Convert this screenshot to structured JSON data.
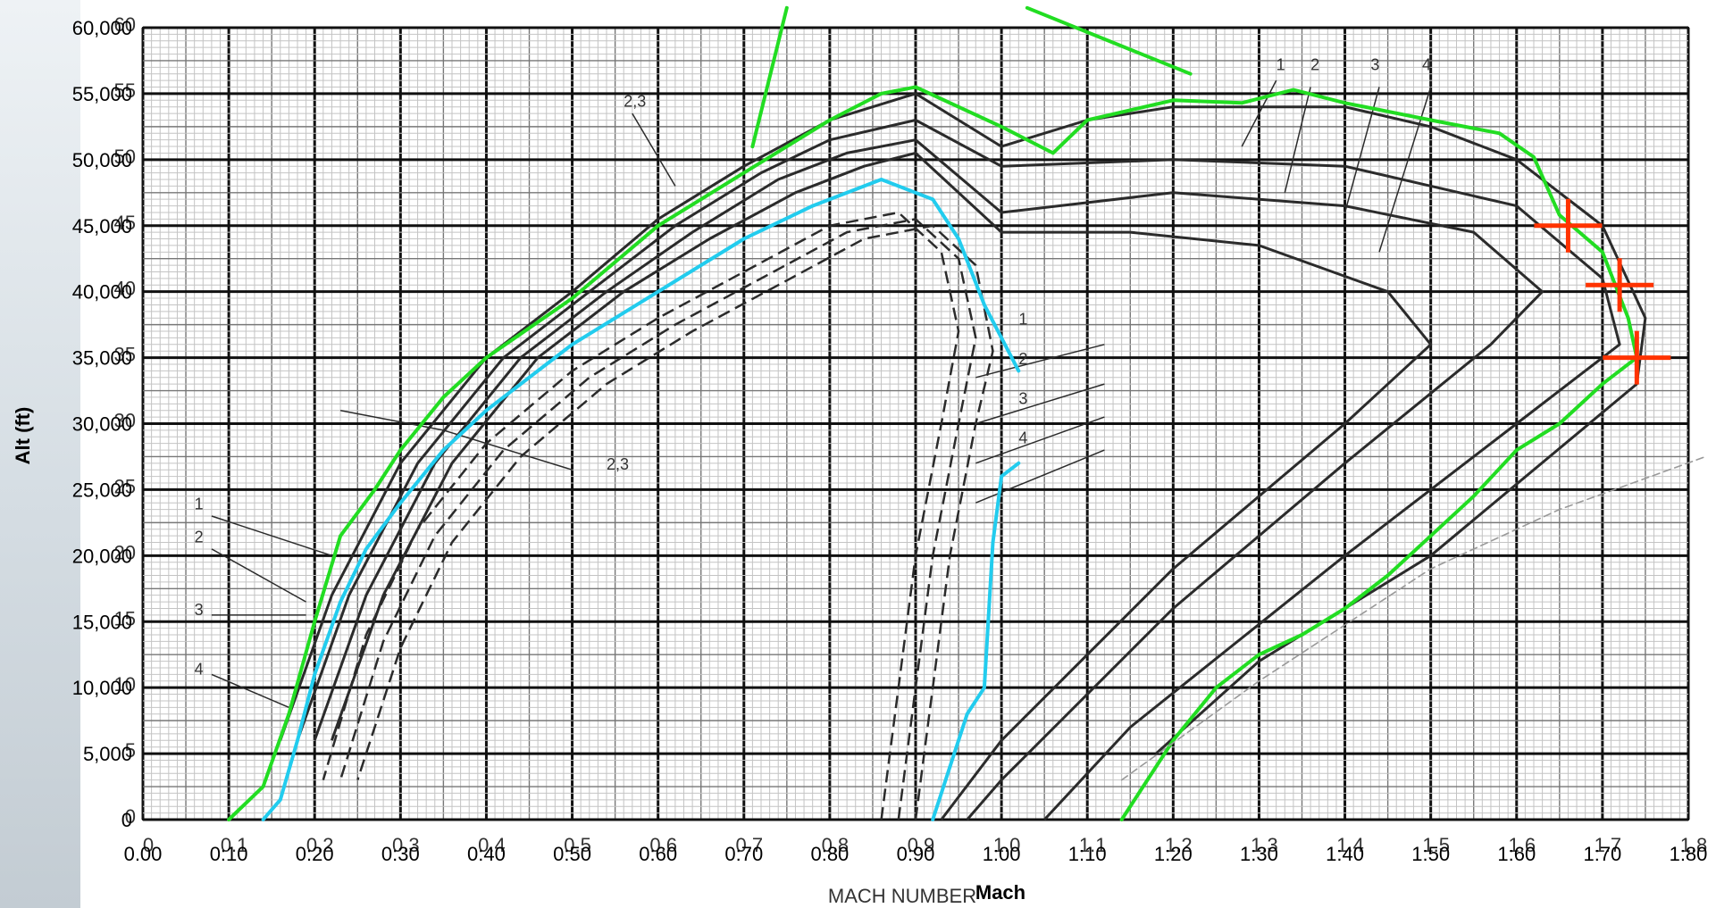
{
  "chart_data": {
    "type": "line",
    "xlabel": "Mach",
    "ylabel": "Alt (ft)",
    "xlim": [
      0.0,
      1.8
    ],
    "ylim": [
      0,
      60000
    ],
    "grid": true,
    "x_ticks": [
      "0.00",
      "0:10",
      "0:20",
      "0:30",
      "0:40",
      "0:50",
      "0:60",
      "0:70",
      "0:80",
      "0:90",
      "1:00",
      "1:10",
      "1:20",
      "1:30",
      "1:40",
      "1:50",
      "1:60",
      "1:70",
      "1:80"
    ],
    "y_ticks": [
      "0",
      "5,000",
      "10,000",
      "15,000",
      "20,000",
      "25,000",
      "30,000",
      "35,000",
      "40,000",
      "45,000",
      "50,000",
      "55,000",
      "60,000"
    ],
    "background_chart": {
      "xlabel": "MACH NUMBER",
      "x_ticks": [
        "0",
        "0.1",
        "0.2",
        "0.3",
        "0.4",
        "0.5",
        "0.6",
        "0.7",
        "0.8",
        "0.9",
        "1.0",
        "1.1",
        "1.2",
        "1.3",
        "1.4",
        "1.5",
        "1.6",
        "1.7",
        "1.8"
      ],
      "y_ticks": [
        "0",
        "5",
        "10",
        "15",
        "20",
        "25",
        "30",
        "35",
        "40",
        "45",
        "50",
        "55",
        "60"
      ],
      "labels": [
        "1",
        "2",
        "3",
        "4",
        "2,3",
        "1",
        "2",
        "3",
        "4",
        "2,3",
        "1",
        "2",
        "3",
        "4"
      ]
    },
    "series": [
      {
        "color": "#22dd22",
        "points": [
          [
            0.1,
            0
          ],
          [
            0.14,
            2500
          ],
          [
            0.17,
            8000
          ],
          [
            0.2,
            15000
          ],
          [
            0.23,
            21500
          ],
          [
            0.27,
            25000
          ],
          [
            0.3,
            28000
          ],
          [
            0.35,
            32000
          ],
          [
            0.4,
            35000
          ],
          [
            0.5,
            39500
          ],
          [
            0.6,
            45000
          ],
          [
            0.7,
            49000
          ],
          [
            0.8,
            53000
          ],
          [
            0.86,
            55000
          ],
          [
            0.9,
            55500
          ],
          [
            1.0,
            52500
          ],
          [
            1.06,
            50500
          ],
          [
            1.1,
            53000
          ],
          [
            1.2,
            54500
          ],
          [
            1.28,
            54300
          ],
          [
            1.34,
            55300
          ],
          [
            1.4,
            54300
          ],
          [
            1.5,
            53000
          ],
          [
            1.58,
            52000
          ],
          [
            1.62,
            50200
          ],
          [
            1.65,
            45800
          ],
          [
            1.7,
            43000
          ],
          [
            1.73,
            38000
          ],
          [
            1.74,
            35000
          ],
          [
            1.7,
            33000
          ],
          [
            1.65,
            30000
          ],
          [
            1.6,
            28000
          ],
          [
            1.55,
            24500
          ],
          [
            1.5,
            21500
          ],
          [
            1.45,
            18500
          ],
          [
            1.4,
            16000
          ],
          [
            1.35,
            14000
          ],
          [
            1.3,
            12500
          ],
          [
            1.25,
            10000
          ],
          [
            1.2,
            6000
          ],
          [
            1.16,
            2000
          ],
          [
            1.14,
            0
          ]
        ]
      },
      {
        "color": "#22dd22",
        "points": [
          [
            0.71,
            51000
          ],
          [
            0.75,
            61500
          ]
        ]
      },
      {
        "color": "#22dd22",
        "points": [
          [
            1.03,
            61500
          ],
          [
            1.22,
            56500
          ]
        ]
      },
      {
        "color": "#22ccee",
        "points": [
          [
            0.14,
            0
          ],
          [
            0.16,
            1500
          ],
          [
            0.18,
            6000
          ],
          [
            0.2,
            11000
          ],
          [
            0.23,
            16500
          ],
          [
            0.26,
            20500
          ],
          [
            0.3,
            24000
          ],
          [
            0.35,
            28000
          ],
          [
            0.4,
            31000
          ],
          [
            0.5,
            36000
          ],
          [
            0.6,
            40000
          ],
          [
            0.7,
            44000
          ],
          [
            0.78,
            46500
          ],
          [
            0.86,
            48500
          ],
          [
            0.92,
            47000
          ],
          [
            0.95,
            44000
          ],
          [
            0.98,
            39000
          ],
          [
            1.02,
            34000
          ]
        ]
      },
      {
        "color": "#22ccee",
        "points": [
          [
            1.02,
            27000
          ],
          [
            1.0,
            26000
          ],
          [
            0.99,
            21000
          ],
          [
            0.98,
            10000
          ],
          [
            0.96,
            8000
          ],
          [
            0.94,
            4000
          ],
          [
            0.92,
            0
          ]
        ]
      },
      {
        "color": "#999999",
        "dashed": true,
        "points": [
          [
            1.14,
            3000
          ],
          [
            1.3,
            10500
          ],
          [
            1.5,
            19000
          ],
          [
            1.65,
            23500
          ],
          [
            1.82,
            27500
          ]
        ]
      }
    ],
    "markers": [
      {
        "type": "plus",
        "color": "#ff3300",
        "x": 1.66,
        "y": 45000
      },
      {
        "type": "plus",
        "color": "#ff3300",
        "x": 1.72,
        "y": 40500
      },
      {
        "type": "plus",
        "color": "#ff3300",
        "x": 1.74,
        "y": 35000
      }
    ]
  }
}
